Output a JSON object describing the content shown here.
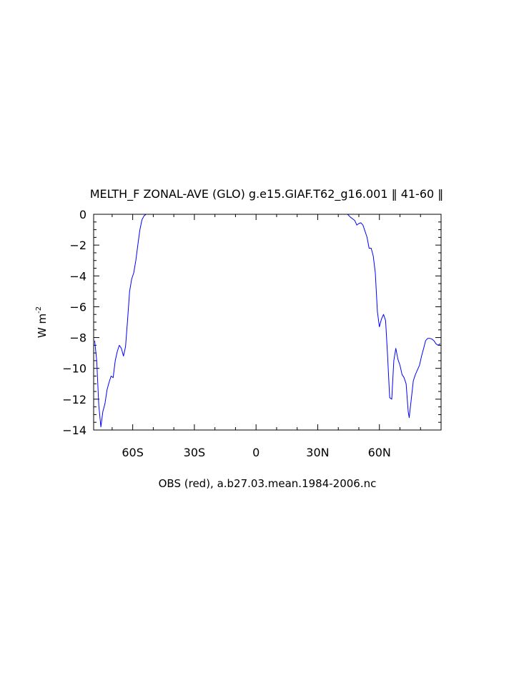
{
  "chart_data": {
    "type": "line",
    "title": "MELTH_F ZONAL-AVE (GLO) g.e15.GIAF.T62_g16.001 ‖ 41-60 ‖",
    "xlabel": "OBS (red), a.b27.03.mean.1984-2006.nc",
    "ylabel": "W m",
    "ylabel_superscript": "-2",
    "xlim": [
      -79,
      90
    ],
    "ylim": [
      -14,
      0
    ],
    "grid": false,
    "x_ticks": [
      {
        "value": -60,
        "label": "60S"
      },
      {
        "value": -30,
        "label": "30S"
      },
      {
        "value": 0,
        "label": "0"
      },
      {
        "value": 30,
        "label": "30N"
      },
      {
        "value": 60,
        "label": "60N"
      }
    ],
    "y_ticks": [
      {
        "value": 0,
        "label": "0"
      },
      {
        "value": -2,
        "label": "−2"
      },
      {
        "value": -4,
        "label": "−4"
      },
      {
        "value": -6,
        "label": "−6"
      },
      {
        "value": -8,
        "label": "−8"
      },
      {
        "value": -10,
        "label": "−10"
      },
      {
        "value": -12,
        "label": "−12"
      },
      {
        "value": -14,
        "label": "−14"
      }
    ],
    "series": [
      {
        "color": "#0000ff",
        "segments": [
          [
            [
              -78.5,
              -8.2
            ],
            [
              -77.5,
              -9.5
            ],
            [
              -76.5,
              -12.4
            ],
            [
              -75.5,
              -13.8
            ],
            [
              -74.5,
              -12.8
            ],
            [
              -73.5,
              -12.3
            ],
            [
              -72.5,
              -11.4
            ],
            [
              -71.5,
              -10.9
            ],
            [
              -70.5,
              -10.5
            ],
            [
              -69.5,
              -10.6
            ],
            [
              -68.5,
              -9.5
            ],
            [
              -67.5,
              -8.9
            ],
            [
              -66.5,
              -8.5
            ],
            [
              -65.5,
              -8.7
            ],
            [
              -64.5,
              -9.2
            ],
            [
              -63.5,
              -8.6
            ],
            [
              -62.5,
              -6.9
            ],
            [
              -61.5,
              -5.0
            ],
            [
              -60.5,
              -4.2
            ],
            [
              -59.5,
              -3.8
            ],
            [
              -58.5,
              -3.0
            ],
            [
              -57.5,
              -2.0
            ],
            [
              -56.5,
              -1.0
            ],
            [
              -55.5,
              -0.35
            ],
            [
              -54.5,
              -0.1
            ],
            [
              -53.5,
              0.0
            ]
          ],
          [
            [
              44.5,
              0.0
            ],
            [
              46,
              -0.2
            ],
            [
              48,
              -0.4
            ],
            [
              49,
              -0.7
            ],
            [
              50,
              -0.6
            ],
            [
              51,
              -0.55
            ],
            [
              52,
              -0.7
            ],
            [
              53,
              -1.1
            ],
            [
              54,
              -1.5
            ],
            [
              55,
              -2.2
            ],
            [
              56,
              -2.2
            ],
            [
              57,
              -2.7
            ],
            [
              58,
              -3.8
            ],
            [
              59,
              -6.3
            ],
            [
              60,
              -7.3
            ],
            [
              61,
              -6.8
            ],
            [
              62,
              -6.5
            ],
            [
              63,
              -6.9
            ],
            [
              64,
              -9.2
            ],
            [
              65,
              -11.9
            ],
            [
              66,
              -12.0
            ],
            [
              67,
              -9.5
            ],
            [
              68,
              -8.7
            ],
            [
              69,
              -9.4
            ],
            [
              70,
              -9.8
            ],
            [
              71,
              -10.4
            ],
            [
              72,
              -10.6
            ],
            [
              73,
              -11.0
            ],
            [
              74,
              -12.8
            ],
            [
              74.5,
              -13.2
            ],
            [
              75.5,
              -12.0
            ],
            [
              76.5,
              -10.8
            ],
            [
              77.5,
              -10.4
            ],
            [
              78.5,
              -10.1
            ],
            [
              79.5,
              -9.8
            ],
            [
              80.5,
              -9.2
            ],
            [
              81.5,
              -8.7
            ],
            [
              82.5,
              -8.2
            ],
            [
              83.5,
              -8.05
            ],
            [
              84.5,
              -8.05
            ],
            [
              85.5,
              -8.1
            ],
            [
              86.5,
              -8.2
            ],
            [
              87.5,
              -8.4
            ],
            [
              88.5,
              -8.5
            ],
            [
              89.5,
              -8.4
            ]
          ]
        ]
      }
    ]
  }
}
